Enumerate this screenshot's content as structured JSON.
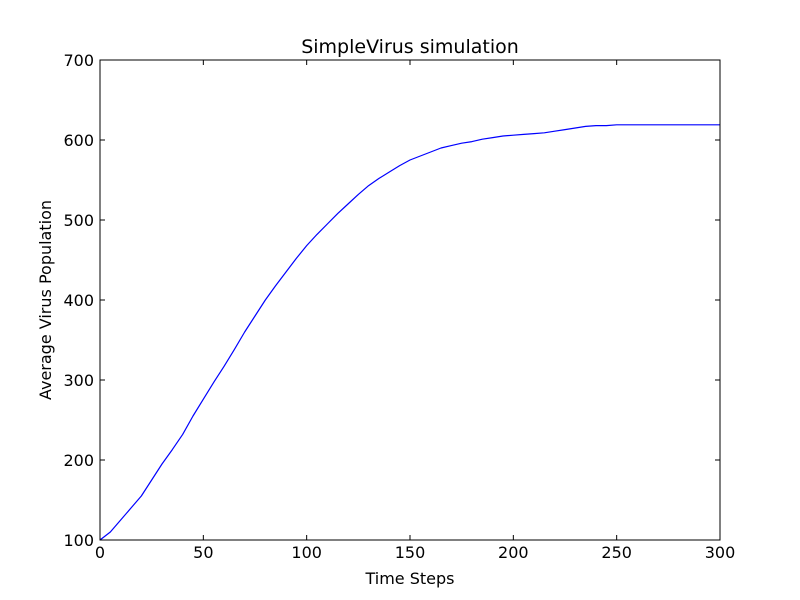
{
  "chart_data": {
    "type": "line",
    "title": "SimpleVirus simulation",
    "xlabel": "Time Steps",
    "ylabel": "Average Virus Population",
    "xlim": [
      0,
      300
    ],
    "ylim": [
      100,
      700
    ],
    "xticks": [
      0,
      50,
      100,
      150,
      200,
      250,
      300
    ],
    "yticks": [
      100,
      200,
      300,
      400,
      500,
      600,
      700
    ],
    "grid": false,
    "legend": "none",
    "series": [
      {
        "color": "#0000ff",
        "x": [
          0,
          5,
          10,
          15,
          20,
          25,
          30,
          35,
          40,
          45,
          50,
          55,
          60,
          65,
          70,
          75,
          80,
          85,
          90,
          95,
          100,
          105,
          110,
          115,
          120,
          125,
          130,
          135,
          140,
          145,
          150,
          155,
          160,
          165,
          170,
          175,
          180,
          185,
          190,
          195,
          200,
          205,
          210,
          215,
          220,
          225,
          230,
          235,
          240,
          245,
          250,
          255,
          260,
          265,
          270,
          275,
          280,
          285,
          290,
          295,
          300
        ],
        "y": [
          100,
          110,
          125,
          140,
          155,
          175,
          195,
          213,
          232,
          255,
          276,
          297,
          317,
          338,
          360,
          380,
          400,
          418,
          435,
          452,
          468,
          482,
          495,
          508,
          520,
          532,
          543,
          552,
          560,
          568,
          575,
          580,
          585,
          590,
          593,
          596,
          598,
          601,
          603,
          605,
          606,
          607,
          608,
          609,
          611,
          613,
          615,
          617,
          618,
          618,
          619,
          619,
          619,
          619,
          619,
          619,
          619,
          619,
          619,
          619,
          619
        ]
      }
    ]
  }
}
